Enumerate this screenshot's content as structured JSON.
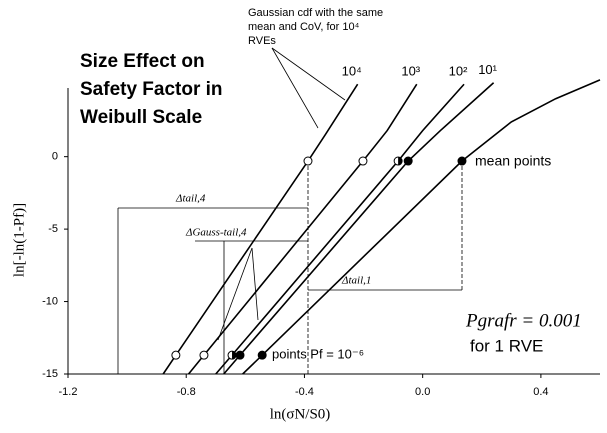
{
  "chart_data": {
    "type": "line",
    "title": [
      "Size Effect on",
      "Safety Factor in",
      "Weibull Scale"
    ],
    "x_label": "ln(σN/S0)",
    "y_label": "ln[-ln(1-Pf)]",
    "xlim": [
      -1.2,
      0.6
    ],
    "ylim": [
      -15,
      7.5
    ],
    "xticks": [
      -1.2,
      -0.8,
      -0.4,
      {
        "value": 0,
        "label": "0.0"
      },
      0.4
    ],
    "yticks": [
      -15,
      -10,
      -5,
      0
    ],
    "color": "#000000",
    "series": [
      {
        "name": "10⁴",
        "x": [
          -0.878,
          -0.835,
          -0.388,
          -0.33,
          -0.22
        ],
        "values": [
          -15,
          -13.7,
          -0.3,
          1.5,
          5.0
        ]
      },
      {
        "name": "10³",
        "x": [
          -0.792,
          -0.74,
          -0.202,
          -0.12,
          -0.02
        ],
        "values": [
          -15,
          -13.7,
          -0.3,
          1.8,
          5.0
        ]
      },
      {
        "name": "10²",
        "x": [
          -0.7,
          -0.645,
          -0.083,
          0.0,
          0.14
        ],
        "values": [
          -15,
          -13.7,
          -0.3,
          1.8,
          5.0
        ]
      },
      {
        "name": "10¹",
        "x": [
          -0.673,
          -0.618,
          -0.049,
          0.06,
          0.24
        ],
        "values": [
          -15,
          -13.7,
          -0.3,
          1.8,
          5.1
        ]
      },
      {
        "name": "1 RVE",
        "x": [
          -0.609,
          -0.543,
          0.133,
          0.3,
          0.45,
          0.6
        ],
        "values": [
          -15,
          -13.7,
          -0.3,
          2.4,
          4.0,
          5.3
        ]
      }
    ],
    "markers": [
      "open",
      "open",
      "half",
      "filled",
      "filled"
    ],
    "mean_points": {
      "label": "mean points",
      "x": [
        -0.388,
        -0.202,
        -0.083,
        -0.049,
        0.133
      ],
      "values": [
        -0.3,
        -0.3,
        -0.3,
        -0.3,
        -0.3
      ]
    },
    "low_points": {
      "label": "points Pf = 10⁻⁶",
      "x": [
        -0.835,
        -0.74,
        -0.645,
        -0.618,
        -0.543
      ],
      "values": [
        -13.7,
        -13.7,
        -13.7,
        -13.7,
        -13.7
      ]
    },
    "annotations": {
      "gaussian": [
        "Gaussian cdf with the same",
        "mean and CoV, for 10⁴",
        "RVEs"
      ],
      "delta_tail_4": "Δtail,4",
      "delta_gauss": "ΔGauss-tail,4",
      "delta_tail_1": "Δtail,1",
      "pgrafr": "Pgrafr = 0.001",
      "pgrafr_note": "for 1 RVE"
    }
  }
}
